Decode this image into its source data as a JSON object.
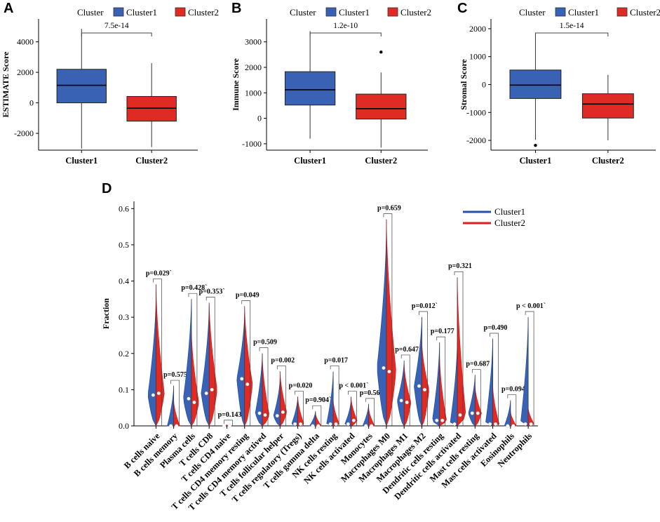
{
  "figure": {
    "panels": [
      "A",
      "B",
      "C",
      "D"
    ],
    "legend_title": "Cluster",
    "colors": {
      "cluster1": "#3a62b4",
      "cluster2": "#e02a24",
      "cluster1_line": "#2352ad",
      "cluster2_line": "#e11d1d"
    }
  },
  "chart_data": [
    {
      "panel": "A",
      "type": "box",
      "ylabel": "ESTIMATE Score",
      "legend": [
        "Cluster1",
        "Cluster2"
      ],
      "categories": [
        "Cluster1",
        "Cluster2"
      ],
      "ylim": [
        -3100,
        5500
      ],
      "yticks": [
        -2000,
        0,
        2000,
        4000
      ],
      "pvalue": "7.5e-14",
      "boxes": [
        {
          "name": "Cluster1",
          "min": -3000,
          "q1": 0,
          "median": 1150,
          "q3": 2200,
          "max": 4850,
          "outliers": []
        },
        {
          "name": "Cluster2",
          "min": -2900,
          "q1": -1200,
          "median": -350,
          "q3": 420,
          "max": 2600,
          "outliers": []
        }
      ]
    },
    {
      "panel": "B",
      "type": "box",
      "ylabel": "Immune Score",
      "legend": [
        "Cluster1",
        "Cluster2"
      ],
      "categories": [
        "Cluster1",
        "Cluster2"
      ],
      "ylim": [
        -1250,
        3900
      ],
      "yticks": [
        -1000,
        0,
        1000,
        2000,
        3000
      ],
      "pvalue": "1.2e-10",
      "boxes": [
        {
          "name": "Cluster1",
          "min": -800,
          "q1": 520,
          "median": 1120,
          "q3": 1830,
          "max": 3420,
          "outliers": []
        },
        {
          "name": "Cluster2",
          "min": -1150,
          "q1": -30,
          "median": 380,
          "q3": 950,
          "max": 1800,
          "outliers": [
            2600
          ]
        }
      ]
    },
    {
      "panel": "C",
      "type": "box",
      "ylabel": "Stromal Score",
      "legend": [
        "Cluster1",
        "Cluster2"
      ],
      "categories": [
        "Cluster1",
        "Cluster2"
      ],
      "ylim": [
        -2350,
        2350
      ],
      "yticks": [
        -2000,
        -1000,
        0,
        1000,
        2000
      ],
      "pvalue": "1.5e-14",
      "boxes": [
        {
          "name": "Cluster1",
          "min": -1980,
          "q1": -500,
          "median": -20,
          "q3": 520,
          "max": 1850,
          "outliers": [
            -2180
          ]
        },
        {
          "name": "Cluster2",
          "min": -2000,
          "q1": -1200,
          "median": -700,
          "q3": -330,
          "max": 350,
          "outliers": []
        }
      ]
    },
    {
      "panel": "D",
      "type": "violin",
      "ylabel": "Fraction",
      "ylim": [
        0,
        0.62
      ],
      "yticks": [
        0.0,
        0.1,
        0.2,
        0.3,
        0.4,
        0.5,
        0.6
      ],
      "legend": [
        "Cluster1",
        "Cluster2"
      ],
      "categories": [
        "B cells naive",
        "B cells memory",
        "Plasma cells",
        "T cells CD8",
        "T cells CD4 naive",
        "T cells CD4 memory resting",
        "T cells CD4 memory actived",
        "T cells follicular helper",
        "T cells regulatory (Tregs)",
        "T cells gamma delta",
        "NK cells resting",
        "NK cells activated",
        "Monocytes",
        "Macrophages M0",
        "Macrophages M1",
        "Macrophages M2",
        "Dendritic cells resting",
        "Dendritic cells activated",
        "Mast cells resting",
        "Mast cells activated",
        "Eosinophils",
        "Neutrophils"
      ],
      "pvalues": [
        "p=0.029`",
        "p=0.575`",
        "p=0.428`",
        "p=0.353`",
        "p=0.143",
        "p=0.049",
        "p=0.509",
        "p=0.002",
        "p=0.020",
        "p=0.904`",
        "p=0.017",
        "p < 0.001`",
        "p=0.569",
        "p=0.659",
        "p=0.647",
        "p=0.012`",
        "p=0.177",
        "p=0.321",
        "p=0.687",
        "p=0.490",
        "p=0.094",
        "p < 0.001`"
      ],
      "series": [
        {
          "name": "Cluster1",
          "max": [
            0.35,
            0.11,
            0.35,
            0.33,
            0.0,
            0.31,
            0.2,
            0.13,
            0.08,
            0.04,
            0.15,
            0.07,
            0.06,
            0.54,
            0.18,
            0.3,
            0.23,
            0.23,
            0.14,
            0.24,
            0.07,
            0.3
          ],
          "median": [
            0.085,
            0.0,
            0.075,
            0.09,
            0.0,
            0.13,
            0.035,
            0.028,
            0.005,
            0.0,
            0.005,
            0.005,
            0.0,
            0.16,
            0.07,
            0.11,
            0.015,
            0.005,
            0.035,
            0.005,
            0.0,
            0.005
          ]
        },
        {
          "name": "Cluster2",
          "max": [
            0.39,
            0.07,
            0.26,
            0.34,
            0.0,
            0.33,
            0.19,
            0.15,
            0.08,
            0.035,
            0.07,
            0.08,
            0.05,
            0.57,
            0.17,
            0.23,
            0.19,
            0.41,
            0.11,
            0.11,
            0.04,
            0.05
          ],
          "median": [
            0.09,
            0.0,
            0.065,
            0.1,
            0.0,
            0.115,
            0.03,
            0.038,
            0.005,
            0.0,
            0.005,
            0.015,
            0.0,
            0.15,
            0.065,
            0.1,
            0.015,
            0.03,
            0.035,
            0.005,
            0.0,
            0.005
          ]
        }
      ]
    }
  ]
}
